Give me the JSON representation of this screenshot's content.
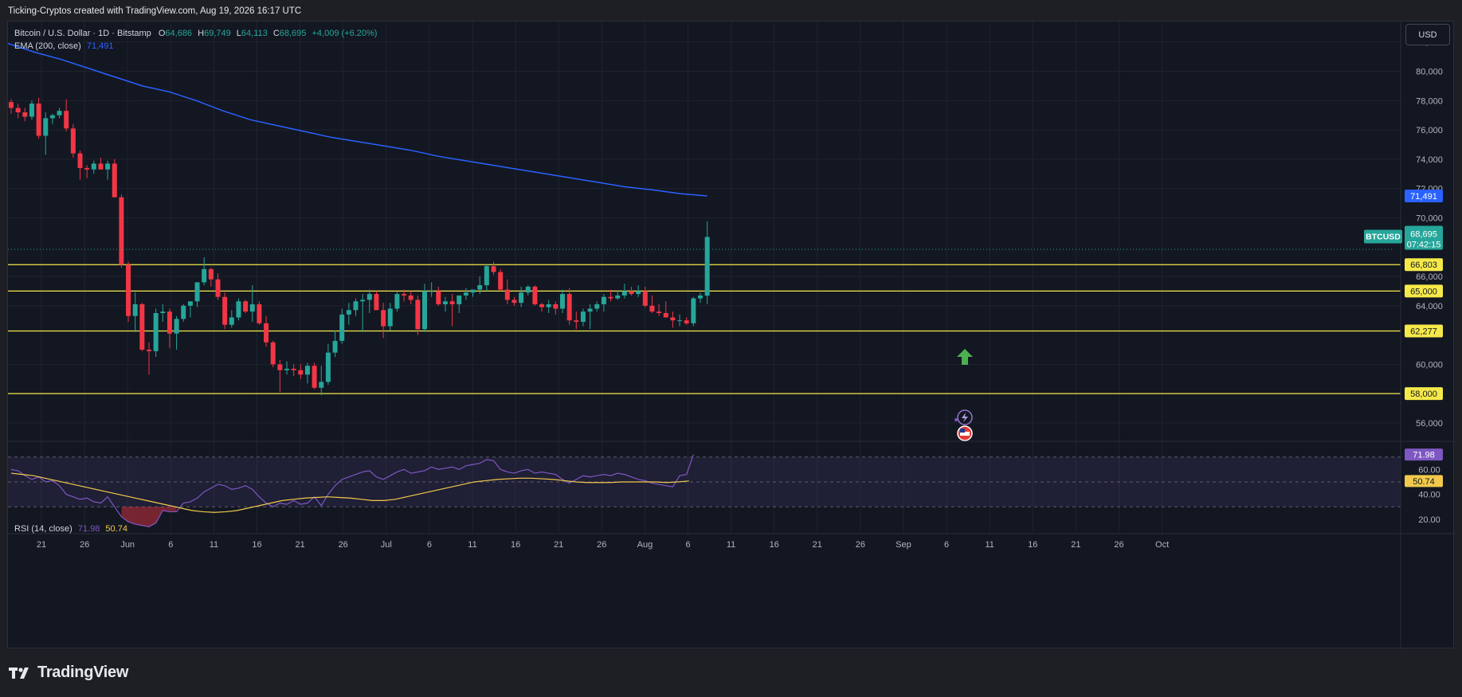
{
  "attribution": "Ticking-Cryptos created with TradingView.com, Aug 19, 2026 16:17 UTC",
  "legend": {
    "symbol": "Bitcoin / U.S. Dollar · 1D · Bitstamp",
    "o_label": "O",
    "o_value": "64,686",
    "h_label": "H",
    "h_value": "69,749",
    "l_label": "L",
    "l_value": "64,113",
    "c_label": "C",
    "c_value": "68,695",
    "change": "+4,009 (+6.20%)",
    "ema_label": "EMA (200, close)",
    "ema_value": "71,491",
    "rsi_label": "RSI (14, close)",
    "rsi_value": "71.98",
    "rsi_ma_value": "50.74"
  },
  "currency_button": "USD",
  "price_axis": {
    "ticks": [
      "82,000",
      "80,000",
      "78,000",
      "76,000",
      "74,000",
      "72,000",
      "70,000",
      "66,000",
      "64,000",
      "60,000",
      "56,000"
    ],
    "ema_badge": "71,491",
    "symbol_badge": "BTCUSD",
    "price_badge": "68,695",
    "countdown": "07:42:15"
  },
  "levels": [
    {
      "value": 66803,
      "label": "66,803"
    },
    {
      "value": 65000,
      "label": "65,000"
    },
    {
      "value": 62277,
      "label": "62,277"
    },
    {
      "value": 58000,
      "label": "58,000"
    }
  ],
  "rsi_axis": {
    "ticks": [
      "60.00",
      "40.00",
      "20.00"
    ],
    "rsi_badge": "71.98",
    "ma_badge": "50.74",
    "upper_band": 70,
    "lower_band": 30,
    "mid_band": 50
  },
  "time_axis": [
    "21",
    "26",
    "Jun",
    "6",
    "11",
    "16",
    "21",
    "26",
    "Jul",
    "6",
    "11",
    "16",
    "21",
    "26",
    "Aug",
    "6",
    "11",
    "16",
    "21",
    "26",
    "Sep",
    "6",
    "11",
    "16",
    "21",
    "26",
    "Oct"
  ],
  "brand": "TradingView",
  "colors": {
    "bg": "#131722",
    "up": "#26a69a",
    "down": "#f23645",
    "ema": "#2962ff",
    "level": "#f5e94a",
    "rsi": "#7e57c2",
    "rsi_ma": "#f2c94c",
    "arrow": "#4caf50"
  },
  "icons": [
    "lightning-event-icon",
    "us-flag-event-icon",
    "green-up-arrow-icon"
  ],
  "chart_data": {
    "type": "candlestick",
    "symbol": "BTCUSD",
    "interval": "1D",
    "ylim": [
      54800,
      83400
    ],
    "candles": [
      [
        77900,
        78100,
        77100,
        77500
      ],
      [
        77500,
        77800,
        76800,
        77200
      ],
      [
        77200,
        77500,
        76600,
        76900
      ],
      [
        76900,
        78000,
        76700,
        77800
      ],
      [
        77800,
        78200,
        75400,
        75600
      ],
      [
        75600,
        77200,
        74300,
        76800
      ],
      [
        76800,
        77100,
        76400,
        77000
      ],
      [
        77000,
        77500,
        76800,
        77300
      ],
      [
        77300,
        78100,
        75900,
        76100
      ],
      [
        76100,
        76400,
        74100,
        74400
      ],
      [
        74400,
        74600,
        72600,
        73400
      ],
      [
        73400,
        73600,
        72700,
        73300
      ],
      [
        73300,
        73900,
        73000,
        73700
      ],
      [
        73700,
        74100,
        73300,
        73300
      ],
      [
        73300,
        73900,
        72600,
        73700
      ],
      [
        73700,
        74000,
        71400,
        71400
      ],
      [
        71400,
        71600,
        66600,
        66800
      ],
      [
        66800,
        67000,
        62900,
        63300
      ],
      [
        63300,
        64900,
        62200,
        64100
      ],
      [
        64100,
        64200,
        60900,
        61000
      ],
      [
        61000,
        61500,
        59300,
        60900
      ],
      [
        60900,
        63800,
        60500,
        63500
      ],
      [
        63500,
        64100,
        62900,
        63600
      ],
      [
        63600,
        63800,
        61100,
        62100
      ],
      [
        62100,
        63300,
        61000,
        63100
      ],
      [
        63100,
        64100,
        62900,
        64000
      ],
      [
        64000,
        64300,
        63200,
        64300
      ],
      [
        64300,
        65400,
        63900,
        65600
      ],
      [
        65600,
        67300,
        65400,
        66500
      ],
      [
        66500,
        66600,
        65300,
        65800
      ],
      [
        65800,
        66200,
        64400,
        64600
      ],
      [
        64600,
        64900,
        62400,
        62700
      ],
      [
        62700,
        63700,
        62500,
        63200
      ],
      [
        63200,
        64500,
        63000,
        64300
      ],
      [
        64300,
        64400,
        63500,
        63600
      ],
      [
        63600,
        65400,
        62900,
        64100
      ],
      [
        64100,
        64300,
        62700,
        62800
      ],
      [
        62800,
        63300,
        61200,
        61500
      ],
      [
        61500,
        61600,
        59800,
        60000
      ],
      [
        60000,
        60300,
        58100,
        59600
      ],
      [
        59600,
        60200,
        59300,
        59700
      ],
      [
        59700,
        60000,
        59200,
        59600
      ],
      [
        59600,
        60000,
        59000,
        59300
      ],
      [
        59300,
        60100,
        58700,
        59900
      ],
      [
        59900,
        60100,
        58300,
        58400
      ],
      [
        58400,
        59900,
        57900,
        58800
      ],
      [
        58800,
        61400,
        58600,
        60800
      ],
      [
        60800,
        62300,
        60500,
        61600
      ],
      [
        61600,
        63800,
        61400,
        63400
      ],
      [
        63400,
        64200,
        62700,
        63700
      ],
      [
        63700,
        64500,
        63300,
        64300
      ],
      [
        64300,
        64800,
        62200,
        64400
      ],
      [
        64400,
        65100,
        63500,
        64800
      ],
      [
        64800,
        65000,
        63700,
        63700
      ],
      [
        63700,
        64200,
        61800,
        62600
      ],
      [
        62600,
        64200,
        62300,
        63800
      ],
      [
        63800,
        65000,
        63600,
        64800
      ],
      [
        64800,
        65100,
        64300,
        64700
      ],
      [
        64700,
        65000,
        64100,
        64400
      ],
      [
        64400,
        64700,
        62000,
        62400
      ],
      [
        62400,
        65500,
        62200,
        65000
      ],
      [
        65000,
        65600,
        64600,
        65000
      ],
      [
        65000,
        65300,
        64000,
        64100
      ],
      [
        64100,
        64600,
        63600,
        64300
      ],
      [
        64300,
        64800,
        62600,
        64100
      ],
      [
        64100,
        64600,
        63500,
        64700
      ],
      [
        64700,
        65200,
        64400,
        64900
      ],
      [
        64900,
        65100,
        64600,
        65100
      ],
      [
        65100,
        66000,
        64800,
        65400
      ],
      [
        65400,
        66800,
        65000,
        66700
      ],
      [
        66700,
        67000,
        66100,
        66300
      ],
      [
        66300,
        66500,
        65000,
        65100
      ],
      [
        65100,
        65800,
        64100,
        64400
      ],
      [
        64400,
        64600,
        64000,
        64200
      ],
      [
        64200,
        65300,
        63900,
        64900
      ],
      [
        64900,
        65400,
        64700,
        65300
      ],
      [
        65300,
        65400,
        64000,
        64100
      ],
      [
        64100,
        64200,
        63600,
        63900
      ],
      [
        63900,
        64400,
        63500,
        64100
      ],
      [
        64100,
        64300,
        63400,
        63800
      ],
      [
        63800,
        65100,
        63500,
        64800
      ],
      [
        64800,
        65200,
        62700,
        63000
      ],
      [
        63000,
        63600,
        62400,
        62900
      ],
      [
        62900,
        63800,
        62600,
        63600
      ],
      [
        63600,
        64100,
        62400,
        63800
      ],
      [
        63800,
        64300,
        63600,
        64100
      ],
      [
        64100,
        64800,
        63600,
        64600
      ],
      [
        64600,
        65100,
        64300,
        64500
      ],
      [
        64500,
        65000,
        64400,
        64700
      ],
      [
        64700,
        65500,
        64500,
        65000
      ],
      [
        65000,
        65300,
        64700,
        64800
      ],
      [
        64800,
        65400,
        64600,
        65000
      ],
      [
        65000,
        65300,
        63900,
        64000
      ],
      [
        64000,
        64700,
        63500,
        63600
      ],
      [
        63600,
        64100,
        63300,
        63500
      ],
      [
        63500,
        64300,
        63200,
        63200
      ],
      [
        63200,
        63600,
        62500,
        63000
      ],
      [
        63000,
        63400,
        62600,
        63000
      ],
      [
        63000,
        63200,
        62700,
        62800
      ],
      [
        62800,
        64600,
        62600,
        64500
      ],
      [
        64500,
        64900,
        64200,
        64700
      ],
      [
        64686,
        69749,
        64113,
        68695
      ]
    ],
    "ema200": [
      81900,
      81300,
      80800,
      80200,
      79600,
      79000,
      78600,
      78000,
      77300,
      76700,
      76300,
      75900,
      75500,
      75200,
      74900,
      74600,
      74200,
      73900,
      73600,
      73300,
      73000,
      72700,
      72400,
      72100,
      71900,
      71650,
      71491
    ],
    "rsi": [
      60,
      59,
      55,
      52,
      54,
      50,
      51,
      47,
      40,
      38,
      36,
      37,
      34,
      33,
      38,
      30,
      22,
      18,
      16,
      15,
      14,
      17,
      27,
      26,
      26,
      33,
      34,
      37,
      42,
      45,
      48,
      47,
      44,
      45,
      47,
      44,
      38,
      33,
      30,
      33,
      32,
      35,
      32,
      33,
      38,
      31,
      40,
      47,
      52,
      54,
      56,
      58,
      59,
      54,
      52,
      55,
      58,
      60,
      57,
      58,
      59,
      62,
      60,
      61,
      62,
      60,
      63,
      64,
      65,
      68,
      67,
      60,
      58,
      57,
      59,
      60,
      57,
      58,
      57,
      56,
      52,
      49,
      52,
      55,
      54,
      55,
      56,
      55,
      57,
      56,
      54,
      52,
      51,
      49,
      48,
      47,
      46,
      55,
      56,
      71.98
    ],
    "rsi_ma": [
      57,
      56,
      55,
      53,
      51,
      49,
      47,
      45,
      43,
      41,
      39,
      37,
      35,
      33,
      31,
      29,
      27,
      26,
      25.5,
      26,
      27,
      29,
      31,
      33,
      35,
      36,
      37,
      37.5,
      38,
      37.5,
      37,
      36,
      35,
      35,
      36,
      38,
      40,
      42,
      44,
      46,
      48,
      50,
      51,
      52,
      52.5,
      53,
      53,
      52.5,
      52,
      51,
      50,
      49.5,
      49.5,
      49.5,
      50,
      50,
      50,
      50,
      49.5,
      50,
      50.74
    ]
  }
}
